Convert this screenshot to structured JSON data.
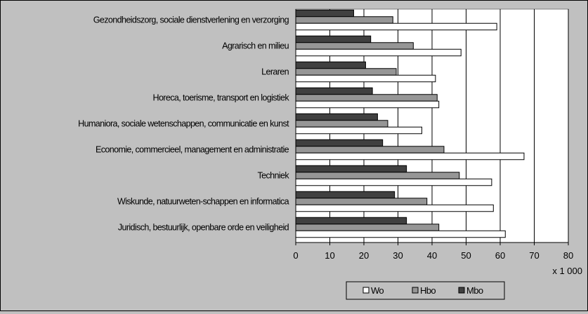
{
  "chart_data": {
    "type": "bar",
    "orientation": "horizontal",
    "categories": [
      "Gezondheidszorg, sociale dienstverlening en verzorging",
      "Agrarisch en milieu",
      "Leraren",
      "Horeca, toerisme, transport en logistiek",
      "Humaniora, sociale wetenschappen, communicatie en kunst",
      "Economie, commercieel, management en administratie",
      "Techniek",
      "Wiskunde, natuurweten-schappen en informatica",
      "Juridisch, bestuurlijk, openbare orde en veiligheid"
    ],
    "series": [
      {
        "name": "Mbo",
        "color": "#404040",
        "values": [
          17,
          22,
          20.5,
          22.5,
          24,
          25.5,
          32.5,
          29,
          32.5
        ]
      },
      {
        "name": "Hbo",
        "color": "#969696",
        "values": [
          28.5,
          34.5,
          29.5,
          41.5,
          27,
          43.5,
          48,
          38.5,
          42
        ]
      },
      {
        "name": "Wo",
        "color": "#ffffff",
        "values": [
          59,
          48.5,
          41,
          42,
          37,
          67,
          57.5,
          58,
          61.5
        ]
      }
    ],
    "legend_order": [
      "Wo",
      "Hbo",
      "Mbo"
    ],
    "xlim": [
      0,
      80
    ],
    "xticks": [
      "0",
      "10",
      "20",
      "30",
      "40",
      "50",
      "60",
      "70",
      "80"
    ],
    "x_unit_label": "x 1 000",
    "grid": true,
    "legend_position": "bottom"
  }
}
